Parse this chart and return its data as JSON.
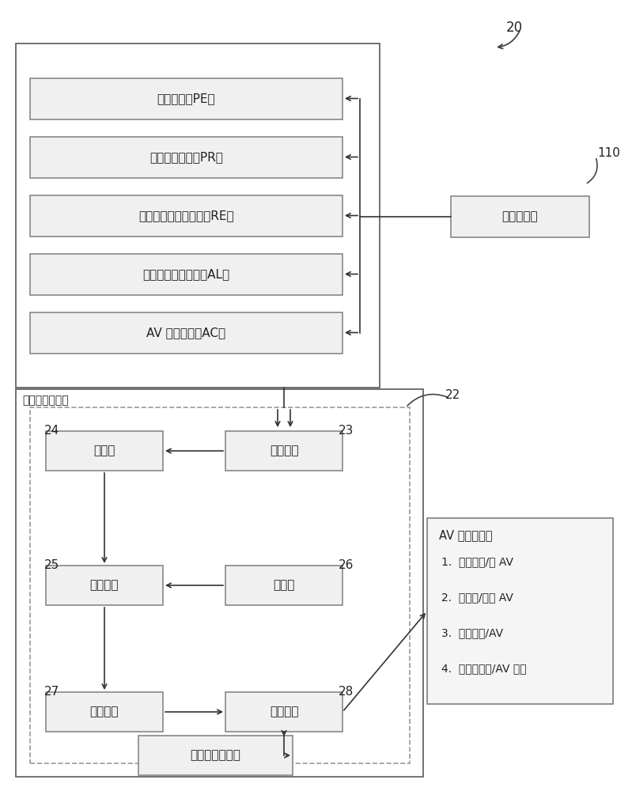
{
  "bg_color": "#ffffff",
  "label_20": "20",
  "label_110": "110",
  "label_22": "22",
  "label_23": "23",
  "label_24": "24",
  "label_25": "25",
  "label_26": "26",
  "label_27": "27",
  "label_28": "28",
  "top_boxes": [
    "AV 置信因子（AC）",
    "驾驶员警觉性因子（AL）",
    "驾驶员准备状态因子（RE）",
    "动作概率因子（PR）",
    "危险因子（PE）"
  ],
  "data_collector_label": "数据收集器",
  "fuzzy_processor_label": "模糊逻辑处理器",
  "inner_boxes": {
    "fuzzer": "模糊器",
    "crisp_input": "脆性输入",
    "inference_engine": "推理引擎",
    "rule_base": "规则库",
    "defuzzer": "解模糊器",
    "crisp_output": "脆性输出"
  },
  "history_label": "历史数据存储器",
  "av_control_title": "AV 控制决策：",
  "av_control_items": [
    "1.  完全人工/无 AV",
    "2.  无人工/完全 AV",
    "3.  部分人工/AV",
    "4.  完全驾驶员/AV 辅助"
  ]
}
